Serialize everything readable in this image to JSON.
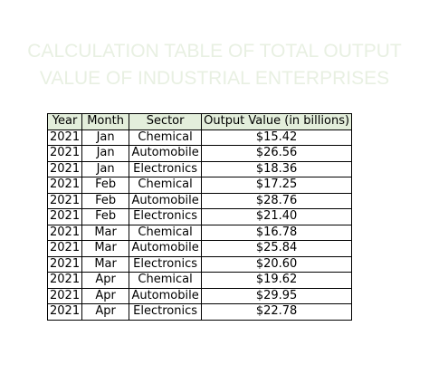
{
  "title": {
    "line1": "CALCULATION TABLE OF TOTAL OUTPUT",
    "line2": "VALUE OF INDUSTRIAL ENTERPRISES"
  },
  "table": {
    "headers": [
      "Year",
      "Month",
      "Sector",
      "Output Value (in billions)"
    ],
    "rows": [
      [
        "2021",
        "Jan",
        "Chemical",
        "$15.42"
      ],
      [
        "2021",
        "Jan",
        "Automobile",
        "$26.56"
      ],
      [
        "2021",
        "Jan",
        "Electronics",
        "$18.36"
      ],
      [
        "2021",
        "Feb",
        "Chemical",
        "$17.25"
      ],
      [
        "2021",
        "Feb",
        "Automobile",
        "$28.76"
      ],
      [
        "2021",
        "Feb",
        "Electronics",
        "$21.40"
      ],
      [
        "2021",
        "Mar",
        "Chemical",
        "$16.78"
      ],
      [
        "2021",
        "Mar",
        "Automobile",
        "$25.84"
      ],
      [
        "2021",
        "Mar",
        "Electronics",
        "$20.60"
      ],
      [
        "2021",
        "Apr",
        "Chemical",
        "$19.62"
      ],
      [
        "2021",
        "Apr",
        "Automobile",
        "$29.95"
      ],
      [
        "2021",
        "Apr",
        "Electronics",
        "$22.78"
      ]
    ]
  },
  "colors": {
    "header_fill": "#e3eedb",
    "title_text": "#e8f0e2",
    "border": "#000000"
  }
}
